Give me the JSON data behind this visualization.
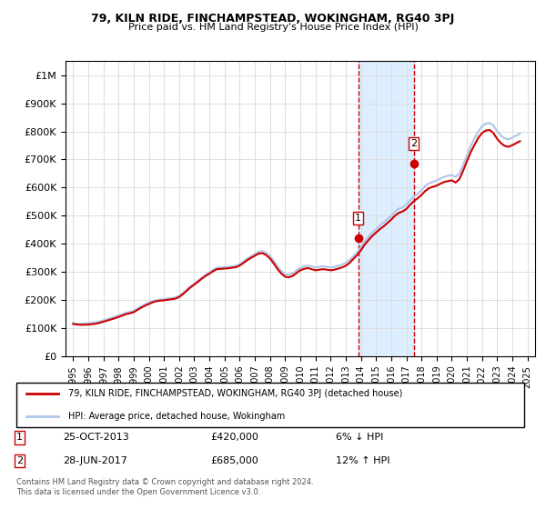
{
  "title": "79, KILN RIDE, FINCHAMPSTEAD, WOKINGHAM, RG40 3PJ",
  "subtitle": "Price paid vs. HM Land Registry's House Price Index (HPI)",
  "ylabel_vals": [
    "£0",
    "£100K",
    "£200K",
    "£300K",
    "£400K",
    "£500K",
    "£600K",
    "£700K",
    "£800K",
    "£900K",
    "£1M"
  ],
  "yticks": [
    0,
    100000,
    200000,
    300000,
    400000,
    500000,
    600000,
    700000,
    800000,
    900000,
    1000000
  ],
  "ylim": [
    0,
    1050000
  ],
  "xlim_start": 1994.5,
  "xlim_end": 2025.5,
  "hpi_color": "#aec6e8",
  "price_color": "#cc0000",
  "sale1_date": "25-OCT-2013",
  "sale1_price": 420000,
  "sale1_label": "6% ↓ HPI",
  "sale1_x": 2013.82,
  "sale2_date": "28-JUN-2017",
  "sale2_price": 685000,
  "sale2_label": "12% ↑ HPI",
  "sale2_x": 2017.49,
  "highlight_color": "#ddeeff",
  "highlight_border": "#cc0000",
  "vline_color": "#cc0000",
  "legend_label1": "79, KILN RIDE, FINCHAMPSTEAD, WOKINGHAM, RG40 3PJ (detached house)",
  "legend_label2": "HPI: Average price, detached house, Wokingham",
  "footnote": "Contains HM Land Registry data © Crown copyright and database right 2024.\nThis data is licensed under the Open Government Licence v3.0.",
  "hpi_data_x": [
    1995.0,
    1995.25,
    1995.5,
    1995.75,
    1996.0,
    1996.25,
    1996.5,
    1996.75,
    1997.0,
    1997.25,
    1997.5,
    1997.75,
    1998.0,
    1998.25,
    1998.5,
    1998.75,
    1999.0,
    1999.25,
    1999.5,
    1999.75,
    2000.0,
    2000.25,
    2000.5,
    2000.75,
    2001.0,
    2001.25,
    2001.5,
    2001.75,
    2002.0,
    2002.25,
    2002.5,
    2002.75,
    2003.0,
    2003.25,
    2003.5,
    2003.75,
    2004.0,
    2004.25,
    2004.5,
    2004.75,
    2005.0,
    2005.25,
    2005.5,
    2005.75,
    2006.0,
    2006.25,
    2006.5,
    2006.75,
    2007.0,
    2007.25,
    2007.5,
    2007.75,
    2008.0,
    2008.25,
    2008.5,
    2008.75,
    2009.0,
    2009.25,
    2009.5,
    2009.75,
    2010.0,
    2010.25,
    2010.5,
    2010.75,
    2011.0,
    2011.25,
    2011.5,
    2011.75,
    2012.0,
    2012.25,
    2012.5,
    2012.75,
    2013.0,
    2013.25,
    2013.5,
    2013.75,
    2014.0,
    2014.25,
    2014.5,
    2014.75,
    2015.0,
    2015.25,
    2015.5,
    2015.75,
    2016.0,
    2016.25,
    2016.5,
    2016.75,
    2017.0,
    2017.25,
    2017.5,
    2017.75,
    2018.0,
    2018.25,
    2018.5,
    2018.75,
    2019.0,
    2019.25,
    2019.5,
    2019.75,
    2020.0,
    2020.25,
    2020.5,
    2020.75,
    2021.0,
    2021.25,
    2021.5,
    2021.75,
    2022.0,
    2022.25,
    2022.5,
    2022.75,
    2023.0,
    2023.25,
    2023.5,
    2023.75,
    2024.0,
    2024.25,
    2024.5
  ],
  "hpi_data_y": [
    118000,
    116000,
    116000,
    117000,
    118000,
    119000,
    121000,
    124000,
    128000,
    132000,
    136000,
    141000,
    145000,
    150000,
    155000,
    158000,
    162000,
    170000,
    178000,
    185000,
    191000,
    197000,
    200000,
    202000,
    203000,
    205000,
    207000,
    209000,
    215000,
    225000,
    237000,
    249000,
    259000,
    270000,
    280000,
    290000,
    298000,
    308000,
    315000,
    316000,
    317000,
    318000,
    320000,
    322000,
    328000,
    338000,
    348000,
    356000,
    364000,
    372000,
    374000,
    368000,
    357000,
    340000,
    320000,
    303000,
    292000,
    290000,
    295000,
    305000,
    315000,
    320000,
    323000,
    320000,
    316000,
    318000,
    320000,
    318000,
    316000,
    318000,
    322000,
    326000,
    332000,
    342000,
    356000,
    370000,
    388000,
    408000,
    425000,
    440000,
    452000,
    465000,
    476000,
    488000,
    500000,
    515000,
    525000,
    530000,
    540000,
    555000,
    568000,
    578000,
    590000,
    605000,
    615000,
    620000,
    625000,
    632000,
    638000,
    642000,
    645000,
    638000,
    650000,
    680000,
    715000,
    748000,
    775000,
    800000,
    818000,
    828000,
    830000,
    820000,
    800000,
    785000,
    775000,
    772000,
    778000,
    785000,
    792000
  ],
  "price_data_x": [
    1995.0,
    1995.25,
    1995.5,
    1995.75,
    1996.0,
    1996.25,
    1996.5,
    1996.75,
    1997.0,
    1997.25,
    1997.5,
    1997.75,
    1998.0,
    1998.25,
    1998.5,
    1998.75,
    1999.0,
    1999.25,
    1999.5,
    1999.75,
    2000.0,
    2000.25,
    2000.5,
    2000.75,
    2001.0,
    2001.25,
    2001.5,
    2001.75,
    2002.0,
    2002.25,
    2002.5,
    2002.75,
    2003.0,
    2003.25,
    2003.5,
    2003.75,
    2004.0,
    2004.25,
    2004.5,
    2004.75,
    2005.0,
    2005.25,
    2005.5,
    2005.75,
    2006.0,
    2006.25,
    2006.5,
    2006.75,
    2007.0,
    2007.25,
    2007.5,
    2007.75,
    2008.0,
    2008.25,
    2008.5,
    2008.75,
    2009.0,
    2009.25,
    2009.5,
    2009.75,
    2010.0,
    2010.25,
    2010.5,
    2010.75,
    2011.0,
    2011.25,
    2011.5,
    2011.75,
    2012.0,
    2012.25,
    2012.5,
    2012.75,
    2013.0,
    2013.25,
    2013.5,
    2013.75,
    2014.0,
    2014.25,
    2014.5,
    2014.75,
    2015.0,
    2015.25,
    2015.5,
    2015.75,
    2016.0,
    2016.25,
    2016.5,
    2016.75,
    2017.0,
    2017.25,
    2017.5,
    2017.75,
    2018.0,
    2018.25,
    2018.5,
    2018.75,
    2019.0,
    2019.25,
    2019.5,
    2019.75,
    2020.0,
    2020.25,
    2020.5,
    2020.75,
    2021.0,
    2021.25,
    2021.5,
    2021.75,
    2022.0,
    2022.25,
    2022.5,
    2022.75,
    2023.0,
    2023.25,
    2023.5,
    2023.75,
    2024.0,
    2024.25,
    2024.5
  ],
  "price_data_y": [
    115000,
    113000,
    112000,
    112000,
    113000,
    114000,
    116000,
    119000,
    123000,
    127000,
    131000,
    135000,
    140000,
    145000,
    150000,
    153000,
    157000,
    165000,
    173000,
    180000,
    186000,
    192000,
    196000,
    198000,
    199000,
    201000,
    203000,
    205000,
    211000,
    221000,
    233000,
    245000,
    255000,
    265000,
    276000,
    286000,
    294000,
    303000,
    310000,
    311000,
    312000,
    313000,
    315000,
    317000,
    323000,
    332000,
    342000,
    350000,
    358000,
    365000,
    367000,
    360000,
    348000,
    330000,
    310000,
    294000,
    283000,
    281000,
    286000,
    296000,
    306000,
    311000,
    314000,
    310000,
    306000,
    308000,
    310000,
    308000,
    306000,
    308000,
    312000,
    316000,
    322000,
    332000,
    346000,
    360000,
    377000,
    397000,
    413000,
    428000,
    440000,
    452000,
    462000,
    474000,
    486000,
    500000,
    510000,
    515000,
    524000,
    539000,
    552000,
    562000,
    574000,
    588000,
    598000,
    603000,
    607000,
    614000,
    620000,
    623000,
    626000,
    618000,
    630000,
    660000,
    694000,
    726000,
    752000,
    777000,
    794000,
    803000,
    805000,
    794000,
    773000,
    758000,
    748000,
    745000,
    751000,
    758000,
    765000
  ]
}
